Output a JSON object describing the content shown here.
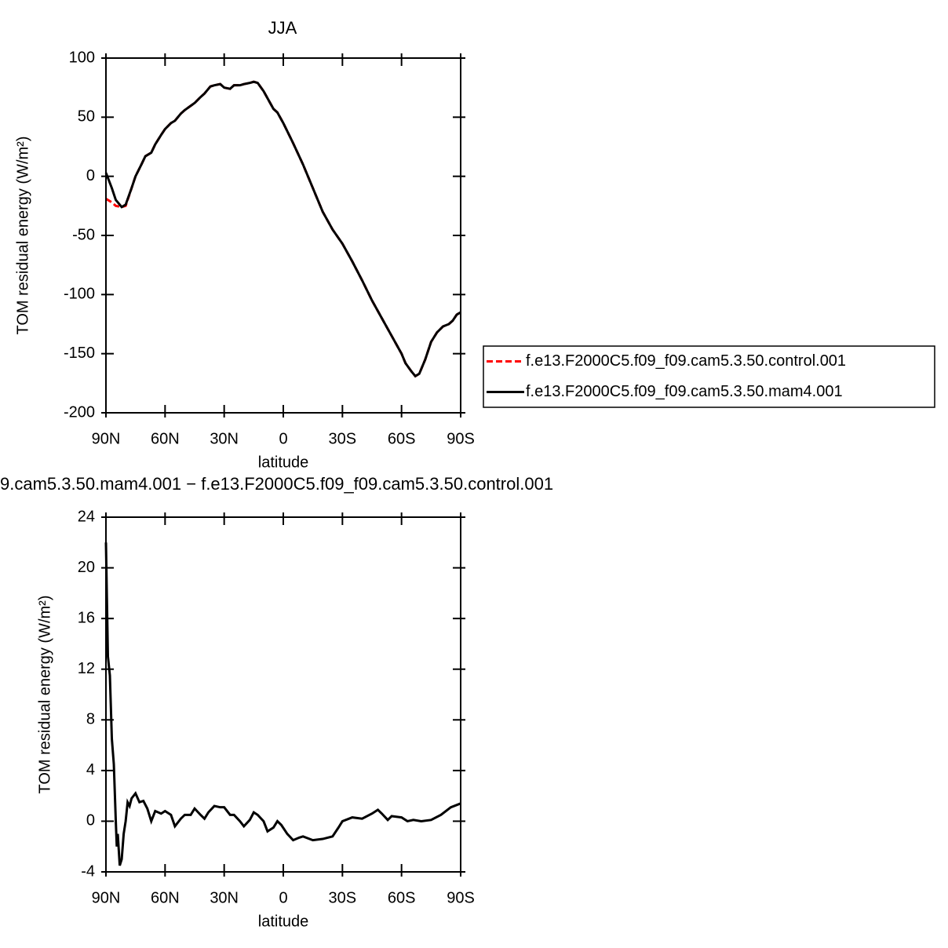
{
  "chart_data": [
    {
      "type": "line",
      "title": "JJA",
      "xlabel": "latitude",
      "ylabel": "TOM residual energy (W/m²)",
      "x": [
        90,
        87,
        85,
        82,
        80,
        77,
        75,
        72,
        70,
        67,
        65,
        62,
        60,
        57,
        55,
        52,
        50,
        45,
        42,
        40,
        37,
        35,
        32,
        30,
        27,
        25,
        22,
        20,
        17,
        15,
        13,
        10,
        7,
        5,
        3,
        0,
        -5,
        -10,
        -15,
        -20,
        -25,
        -30,
        -35,
        -40,
        -45,
        -50,
        -55,
        -60,
        -62,
        -65,
        -67,
        -69,
        -72,
        -75,
        -78,
        -81,
        -84,
        -86,
        -88,
        -90
      ],
      "series": [
        {
          "name": "f.e13.F2000C5.f09_f09.cam5.3.50.control.001",
          "color": "#ff0000",
          "line_style": "dashed",
          "values": [
            -19,
            -22,
            -25,
            -26,
            -25,
            -10,
            0,
            10,
            17,
            20,
            27,
            35,
            40,
            45,
            47,
            53,
            56,
            62,
            67,
            70,
            76,
            77,
            78,
            75,
            74,
            77,
            77,
            78,
            79,
            80,
            79,
            72,
            63,
            57,
            54,
            45,
            28,
            10,
            -10,
            -30,
            -45,
            -57,
            -72,
            -88,
            -105,
            -120,
            -135,
            -150,
            -158,
            -165,
            -169,
            -167,
            -155,
            -140,
            -132,
            -127,
            -125,
            -122,
            -117,
            -115
          ]
        },
        {
          "name": "f.e13.F2000C5.f09_f09.cam5.3.50.mam4.001",
          "color": "#000000",
          "line_style": "solid",
          "values": [
            3,
            -10,
            -20,
            -26,
            -24,
            -10,
            0,
            10,
            17,
            20,
            27,
            35,
            40,
            45,
            47,
            53,
            56,
            62,
            67,
            70,
            76,
            77,
            78,
            75,
            74,
            77,
            77,
            78,
            79,
            80,
            79,
            72,
            63,
            57,
            54,
            45,
            28,
            10,
            -10,
            -30,
            -45,
            -57,
            -72,
            -88,
            -105,
            -120,
            -135,
            -150,
            -158,
            -165,
            -169,
            -167,
            -155,
            -140,
            -132,
            -127,
            -125,
            -122,
            -117,
            -115
          ]
        }
      ],
      "xlim": [
        90,
        -90
      ],
      "xticks": [
        {
          "value": 90,
          "label": "90N"
        },
        {
          "value": 60,
          "label": "60N"
        },
        {
          "value": 30,
          "label": "30N"
        },
        0,
        {
          "value": -30,
          "label": "30S"
        },
        {
          "value": -60,
          "label": "60S"
        },
        {
          "value": -90,
          "label": "90S"
        }
      ],
      "ylim": [
        -200,
        100
      ],
      "yticks": [
        -200,
        -150,
        -100,
        -50,
        0,
        50,
        100
      ],
      "legend": "right"
    },
    {
      "type": "line",
      "title": "9.cam5.3.50.mam4.001 − f.e13.F2000C5.f09_f09.cam5.3.50.control.001",
      "xlabel": "latitude",
      "ylabel": "TOM residual energy (W/m²)",
      "x": [
        90,
        89,
        88,
        87,
        86,
        85,
        84.5,
        84,
        83,
        82,
        81,
        80,
        79,
        78,
        77,
        75,
        73,
        71,
        69,
        67,
        65,
        62,
        60,
        57,
        55,
        52,
        50,
        47,
        45,
        42,
        40,
        38,
        35,
        32,
        30,
        27,
        25,
        22,
        20,
        17,
        15,
        13,
        10,
        8,
        5,
        3,
        1,
        -2,
        -5,
        -8,
        -10,
        -15,
        -20,
        -25,
        -28,
        -30,
        -35,
        -40,
        -45,
        -48,
        -50,
        -53,
        -55,
        -60,
        -63,
        -66,
        -70,
        -75,
        -80,
        -85,
        -90
      ],
      "series": [
        {
          "name": null,
          "color": "#000000",
          "line_style": "solid",
          "values": [
            22,
            13,
            11.5,
            6.5,
            4.5,
            0,
            -2,
            -1,
            -3.5,
            -3,
            -1,
            0,
            1.5,
            1.2,
            1.8,
            2.2,
            1.5,
            1.6,
            1,
            0,
            0.8,
            0.6,
            0.8,
            0.5,
            -0.4,
            0.2,
            0.5,
            0.5,
            1,
            0.5,
            0.2,
            0.7,
            1.2,
            1.1,
            1.1,
            0.5,
            0.5,
            0,
            -0.4,
            0.1,
            0.7,
            0.5,
            0,
            -0.8,
            -0.5,
            0,
            -0.3,
            -1,
            -1.5,
            -1.3,
            -1.2,
            -1.5,
            -1.4,
            -1.2,
            -0.5,
            0,
            0.3,
            0.2,
            0.6,
            0.9,
            0.6,
            0.1,
            0.4,
            0.3,
            0,
            0.1,
            0,
            0.1,
            0.5,
            1.1,
            1.4
          ]
        }
      ],
      "xlim": [
        90,
        -90
      ],
      "xticks": [
        {
          "value": 90,
          "label": "90N"
        },
        {
          "value": 60,
          "label": "60N"
        },
        {
          "value": 30,
          "label": "30N"
        },
        0,
        {
          "value": -30,
          "label": "30S"
        },
        {
          "value": -60,
          "label": "60S"
        },
        {
          "value": -90,
          "label": "90S"
        }
      ],
      "ylim": [
        -4,
        24
      ],
      "yticks": [
        -4,
        0,
        4,
        8,
        12,
        16,
        20,
        24
      ]
    }
  ]
}
